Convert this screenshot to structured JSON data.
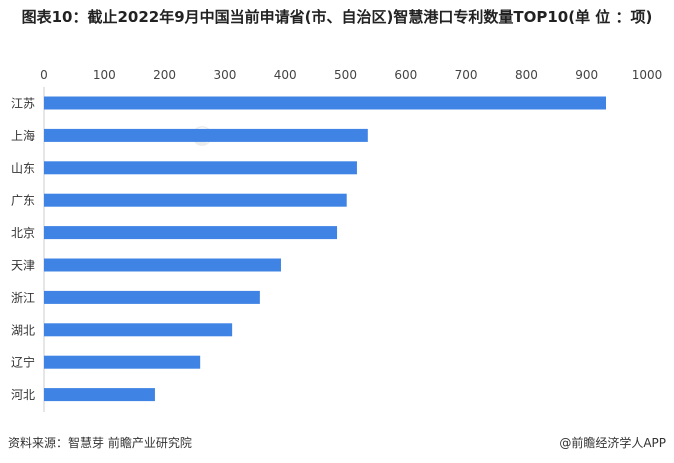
{
  "chart_data": {
    "type": "bar",
    "orientation": "horizontal",
    "title": "图表10：截止2022年9月中国当前申请省(市、自治区)智慧港口专利数量TOP10(单 位 ：项)",
    "categories": [
      "江苏",
      "上海",
      "山东",
      "广东",
      "北京",
      "天津",
      "浙江",
      "湖北",
      "辽宁",
      "河北"
    ],
    "values": [
      932,
      537,
      519,
      502,
      486,
      393,
      358,
      312,
      259,
      184
    ],
    "xlim": [
      0,
      1000
    ],
    "xticks": [
      "0",
      "100",
      "200",
      "300",
      "400",
      "500",
      "600",
      "700",
      "800",
      "900",
      "1000"
    ],
    "xlabel": "",
    "ylabel": "",
    "grid": false,
    "color": "#3f84e5"
  },
  "footer": {
    "source": "资料来源：智慧芽 前瞻产业研究院",
    "brand": "@前瞻经济学人APP"
  },
  "watermark": "前瞻产业研究院"
}
